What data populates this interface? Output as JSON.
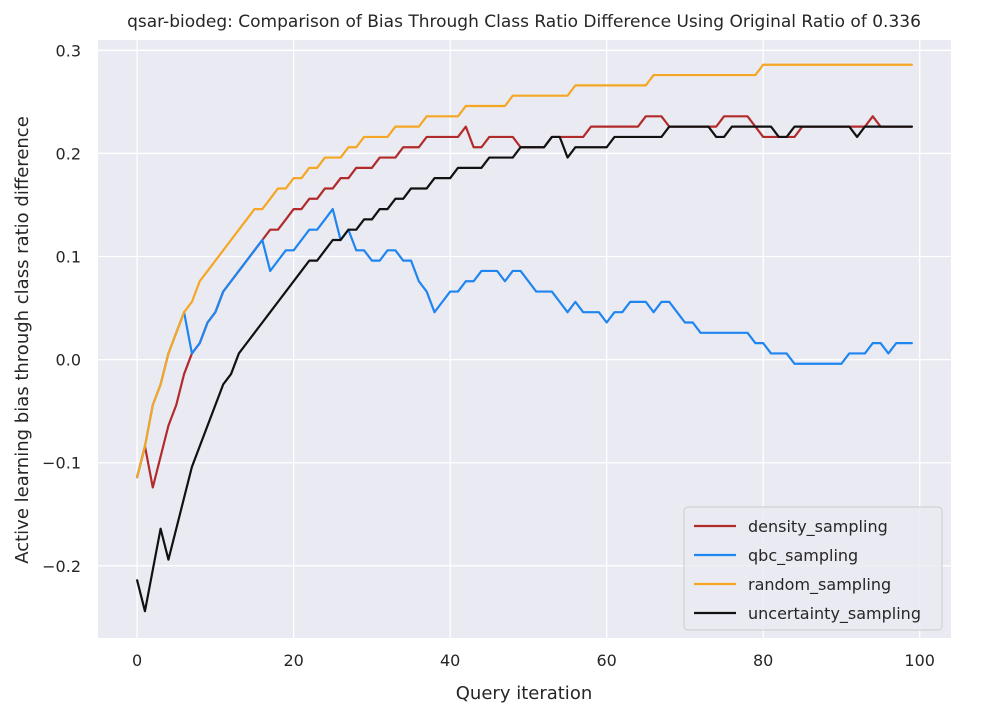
{
  "chart_data": {
    "type": "line",
    "title": "qsar-biodeg: Comparison of Bias Through Class Ratio Difference Using Original Ratio of 0.336",
    "xlabel": "Query iteration",
    "ylabel": "Active learning bias through class ratio difference",
    "xlim": [
      -5,
      104
    ],
    "ylim": [
      -0.27,
      0.31
    ],
    "xticks": [
      0,
      20,
      40,
      60,
      80,
      100
    ],
    "yticks": [
      -0.2,
      -0.1,
      0.0,
      0.1,
      0.2,
      0.3
    ],
    "xtick_labels": [
      "0",
      "20",
      "40",
      "60",
      "80",
      "100"
    ],
    "ytick_labels": [
      "−0.2",
      "−0.1",
      "0.0",
      "0.1",
      "0.2",
      "0.3"
    ],
    "grid": true,
    "legend_position": "lower-right",
    "background": "#eaeaf2",
    "series": [
      {
        "name": "density_sampling",
        "color": "#b22b2b",
        "values": [
          -0.114,
          -0.084,
          -0.124,
          -0.094,
          -0.064,
          -0.044,
          -0.014,
          0.006,
          0.016,
          0.036,
          0.046,
          0.066,
          0.076,
          0.086,
          0.096,
          0.106,
          0.116,
          0.126,
          0.126,
          0.136,
          0.146,
          0.146,
          0.156,
          0.156,
          0.166,
          0.166,
          0.176,
          0.176,
          0.186,
          0.186,
          0.186,
          0.196,
          0.196,
          0.196,
          0.206,
          0.206,
          0.206,
          0.216,
          0.216,
          0.216,
          0.216,
          0.216,
          0.226,
          0.206,
          0.206,
          0.216,
          0.216,
          0.216,
          0.216,
          0.206,
          0.206,
          0.206,
          0.206,
          0.216,
          0.216,
          0.216,
          0.216,
          0.216,
          0.226,
          0.226,
          0.226,
          0.226,
          0.226,
          0.226,
          0.226,
          0.236,
          0.236,
          0.236,
          0.226,
          0.226,
          0.226,
          0.226,
          0.226,
          0.226,
          0.226,
          0.236,
          0.236,
          0.236,
          0.236,
          0.226,
          0.216,
          0.216,
          0.216,
          0.216,
          0.216,
          0.226,
          0.226,
          0.226,
          0.226,
          0.226,
          0.226,
          0.226,
          0.226,
          0.226,
          0.236,
          0.226,
          0.226,
          0.226,
          0.226,
          0.226
        ]
      },
      {
        "name": "qbc_sampling",
        "color": "#1f85f0",
        "values": [
          -0.114,
          -0.084,
          -0.044,
          -0.024,
          0.006,
          0.026,
          0.046,
          0.006,
          0.016,
          0.036,
          0.046,
          0.066,
          0.076,
          0.086,
          0.096,
          0.106,
          0.116,
          0.086,
          0.096,
          0.106,
          0.106,
          0.116,
          0.126,
          0.126,
          0.136,
          0.146,
          0.116,
          0.126,
          0.106,
          0.106,
          0.096,
          0.096,
          0.106,
          0.106,
          0.096,
          0.096,
          0.076,
          0.066,
          0.046,
          0.056,
          0.066,
          0.066,
          0.076,
          0.076,
          0.086,
          0.086,
          0.086,
          0.076,
          0.086,
          0.086,
          0.076,
          0.066,
          0.066,
          0.066,
          0.056,
          0.046,
          0.056,
          0.046,
          0.046,
          0.046,
          0.036,
          0.046,
          0.046,
          0.056,
          0.056,
          0.056,
          0.046,
          0.056,
          0.056,
          0.046,
          0.036,
          0.036,
          0.026,
          0.026,
          0.026,
          0.026,
          0.026,
          0.026,
          0.026,
          0.016,
          0.016,
          0.006,
          0.006,
          0.006,
          -0.004,
          -0.004,
          -0.004,
          -0.004,
          -0.004,
          -0.004,
          -0.004,
          0.006,
          0.006,
          0.006,
          0.016,
          0.016,
          0.006,
          0.016,
          0.016,
          0.016
        ]
      },
      {
        "name": "random_sampling",
        "color": "#f5a623",
        "values": [
          -0.114,
          -0.084,
          -0.044,
          -0.024,
          0.006,
          0.026,
          0.046,
          0.056,
          0.076,
          0.086,
          0.096,
          0.106,
          0.116,
          0.126,
          0.136,
          0.146,
          0.146,
          0.156,
          0.166,
          0.166,
          0.176,
          0.176,
          0.186,
          0.186,
          0.196,
          0.196,
          0.196,
          0.206,
          0.206,
          0.216,
          0.216,
          0.216,
          0.216,
          0.226,
          0.226,
          0.226,
          0.226,
          0.236,
          0.236,
          0.236,
          0.236,
          0.236,
          0.246,
          0.246,
          0.246,
          0.246,
          0.246,
          0.246,
          0.256,
          0.256,
          0.256,
          0.256,
          0.256,
          0.256,
          0.256,
          0.256,
          0.266,
          0.266,
          0.266,
          0.266,
          0.266,
          0.266,
          0.266,
          0.266,
          0.266,
          0.266,
          0.276,
          0.276,
          0.276,
          0.276,
          0.276,
          0.276,
          0.276,
          0.276,
          0.276,
          0.276,
          0.276,
          0.276,
          0.276,
          0.276,
          0.286,
          0.286,
          0.286,
          0.286,
          0.286,
          0.286,
          0.286,
          0.286,
          0.286,
          0.286,
          0.286,
          0.286,
          0.286,
          0.286,
          0.286,
          0.286,
          0.286,
          0.286,
          0.286,
          0.286
        ]
      },
      {
        "name": "uncertainty_sampling",
        "color": "#111111",
        "values": [
          -0.214,
          -0.244,
          -0.204,
          -0.164,
          -0.194,
          -0.164,
          -0.134,
          -0.104,
          -0.084,
          -0.064,
          -0.044,
          -0.024,
          -0.014,
          0.006,
          0.016,
          0.026,
          0.036,
          0.046,
          0.056,
          0.066,
          0.076,
          0.086,
          0.096,
          0.096,
          0.106,
          0.116,
          0.116,
          0.126,
          0.126,
          0.136,
          0.136,
          0.146,
          0.146,
          0.156,
          0.156,
          0.166,
          0.166,
          0.166,
          0.176,
          0.176,
          0.176,
          0.186,
          0.186,
          0.186,
          0.186,
          0.196,
          0.196,
          0.196,
          0.196,
          0.206,
          0.206,
          0.206,
          0.206,
          0.216,
          0.216,
          0.196,
          0.206,
          0.206,
          0.206,
          0.206,
          0.206,
          0.216,
          0.216,
          0.216,
          0.216,
          0.216,
          0.216,
          0.216,
          0.226,
          0.226,
          0.226,
          0.226,
          0.226,
          0.226,
          0.216,
          0.216,
          0.226,
          0.226,
          0.226,
          0.226,
          0.226,
          0.226,
          0.216,
          0.216,
          0.226,
          0.226,
          0.226,
          0.226,
          0.226,
          0.226,
          0.226,
          0.226,
          0.216,
          0.226,
          0.226,
          0.226,
          0.226,
          0.226,
          0.226,
          0.226
        ]
      }
    ]
  }
}
